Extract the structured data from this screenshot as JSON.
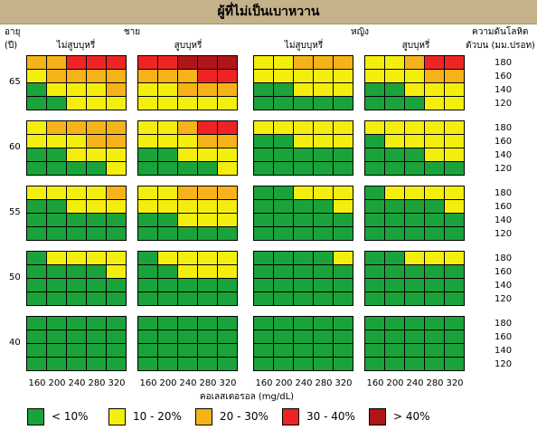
{
  "title": "ผู้ที่ไม่เป็นเบาหวาน",
  "chart_data": {
    "type": "heatmap",
    "title": "ผู้ที่ไม่เป็นเบาหวาน",
    "age_label": "อายุ",
    "age_unit": "(ปี)",
    "sex_labels": [
      "ชาย",
      "หญิง"
    ],
    "smoking_labels": [
      "ไม่สูบบุหรี่",
      "สูบบุหรี่",
      "ไม่สูบบุหรี่",
      "สูบบุหรี่"
    ],
    "bp_label_line1": "ความดันโลหิต",
    "bp_label_line2": "ตัวบน (มม.ปรอท)",
    "xlabel": "คอเลสเตอรอล (mg/dL)",
    "cholesterol": [
      "160",
      "200",
      "240",
      "280",
      "320"
    ],
    "systolic_bp": [
      "180",
      "160",
      "140",
      "120"
    ],
    "ages": [
      "65",
      "60",
      "55",
      "50",
      "40"
    ],
    "panel_columns": [
      "ชาย ไม่สูบบุหรี่",
      "ชาย สูบบุหรี่",
      "หญิง ไม่สูบบุหรี่",
      "หญิง สูบบุหรี่"
    ],
    "categories": [
      {
        "code": 0,
        "label": "< 10%",
        "color": "#1aa33a"
      },
      {
        "code": 1,
        "label": "10 - 20%",
        "color": "#f4ee0f"
      },
      {
        "code": 2,
        "label": "20 - 30%",
        "color": "#f6b319"
      },
      {
        "code": 3,
        "label": "30 - 40%",
        "color": "#ee2424"
      },
      {
        "code": 4,
        "label": "> 40%",
        "color": "#b0151a"
      }
    ],
    "grids": [
      [
        [
          [
            2,
            2,
            3,
            3,
            3
          ],
          [
            1,
            2,
            2,
            2,
            2
          ],
          [
            0,
            1,
            1,
            1,
            2
          ],
          [
            0,
            0,
            1,
            1,
            1
          ]
        ],
        [
          [
            3,
            3,
            4,
            4,
            4
          ],
          [
            2,
            2,
            2,
            3,
            3
          ],
          [
            1,
            1,
            2,
            2,
            2
          ],
          [
            1,
            1,
            1,
            1,
            1
          ]
        ],
        [
          [
            1,
            1,
            2,
            2,
            2
          ],
          [
            1,
            1,
            1,
            1,
            1
          ],
          [
            0,
            0,
            1,
            1,
            1
          ],
          [
            0,
            0,
            0,
            0,
            0
          ]
        ],
        [
          [
            1,
            1,
            2,
            3,
            3
          ],
          [
            1,
            1,
            1,
            2,
            2
          ],
          [
            0,
            0,
            1,
            1,
            1
          ],
          [
            0,
            0,
            0,
            1,
            1
          ]
        ]
      ],
      [
        [
          [
            1,
            2,
            2,
            2,
            2
          ],
          [
            1,
            1,
            1,
            2,
            2
          ],
          [
            0,
            0,
            1,
            1,
            1
          ],
          [
            0,
            0,
            0,
            0,
            1
          ]
        ],
        [
          [
            1,
            1,
            2,
            3,
            3
          ],
          [
            1,
            1,
            1,
            2,
            2
          ],
          [
            0,
            0,
            1,
            1,
            1
          ],
          [
            0,
            0,
            0,
            0,
            1
          ]
        ],
        [
          [
            1,
            1,
            1,
            1,
            1
          ],
          [
            0,
            0,
            1,
            1,
            1
          ],
          [
            0,
            0,
            0,
            0,
            0
          ],
          [
            0,
            0,
            0,
            0,
            0
          ]
        ],
        [
          [
            1,
            1,
            1,
            1,
            1
          ],
          [
            0,
            1,
            1,
            1,
            1
          ],
          [
            0,
            0,
            0,
            1,
            1
          ],
          [
            0,
            0,
            0,
            0,
            0
          ]
        ]
      ],
      [
        [
          [
            1,
            1,
            1,
            1,
            2
          ],
          [
            0,
            0,
            1,
            1,
            1
          ],
          [
            0,
            0,
            0,
            0,
            0
          ],
          [
            0,
            0,
            0,
            0,
            0
          ]
        ],
        [
          [
            1,
            1,
            2,
            2,
            2
          ],
          [
            1,
            1,
            1,
            1,
            1
          ],
          [
            0,
            0,
            1,
            1,
            1
          ],
          [
            0,
            0,
            0,
            0,
            0
          ]
        ],
        [
          [
            0,
            0,
            1,
            1,
            1
          ],
          [
            0,
            0,
            0,
            0,
            1
          ],
          [
            0,
            0,
            0,
            0,
            0
          ],
          [
            0,
            0,
            0,
            0,
            0
          ]
        ],
        [
          [
            0,
            1,
            1,
            1,
            1
          ],
          [
            0,
            0,
            0,
            0,
            1
          ],
          [
            0,
            0,
            0,
            0,
            0
          ],
          [
            0,
            0,
            0,
            0,
            0
          ]
        ]
      ],
      [
        [
          [
            0,
            1,
            1,
            1,
            1
          ],
          [
            0,
            0,
            0,
            0,
            1
          ],
          [
            0,
            0,
            0,
            0,
            0
          ],
          [
            0,
            0,
            0,
            0,
            0
          ]
        ],
        [
          [
            0,
            1,
            1,
            1,
            1
          ],
          [
            0,
            0,
            1,
            1,
            1
          ],
          [
            0,
            0,
            0,
            0,
            0
          ],
          [
            0,
            0,
            0,
            0,
            0
          ]
        ],
        [
          [
            0,
            0,
            0,
            0,
            1
          ],
          [
            0,
            0,
            0,
            0,
            0
          ],
          [
            0,
            0,
            0,
            0,
            0
          ],
          [
            0,
            0,
            0,
            0,
            0
          ]
        ],
        [
          [
            0,
            0,
            1,
            1,
            1
          ],
          [
            0,
            0,
            0,
            0,
            0
          ],
          [
            0,
            0,
            0,
            0,
            0
          ],
          [
            0,
            0,
            0,
            0,
            0
          ]
        ]
      ],
      [
        [
          [
            0,
            0,
            0,
            0,
            0
          ],
          [
            0,
            0,
            0,
            0,
            0
          ],
          [
            0,
            0,
            0,
            0,
            0
          ],
          [
            0,
            0,
            0,
            0,
            0
          ]
        ],
        [
          [
            0,
            0,
            0,
            0,
            0
          ],
          [
            0,
            0,
            0,
            0,
            0
          ],
          [
            0,
            0,
            0,
            0,
            0
          ],
          [
            0,
            0,
            0,
            0,
            0
          ]
        ],
        [
          [
            0,
            0,
            0,
            0,
            0
          ],
          [
            0,
            0,
            0,
            0,
            0
          ],
          [
            0,
            0,
            0,
            0,
            0
          ],
          [
            0,
            0,
            0,
            0,
            0
          ]
        ],
        [
          [
            0,
            0,
            0,
            0,
            0
          ],
          [
            0,
            0,
            0,
            0,
            0
          ],
          [
            0,
            0,
            0,
            0,
            0
          ],
          [
            0,
            0,
            0,
            0,
            0
          ]
        ]
      ]
    ]
  }
}
